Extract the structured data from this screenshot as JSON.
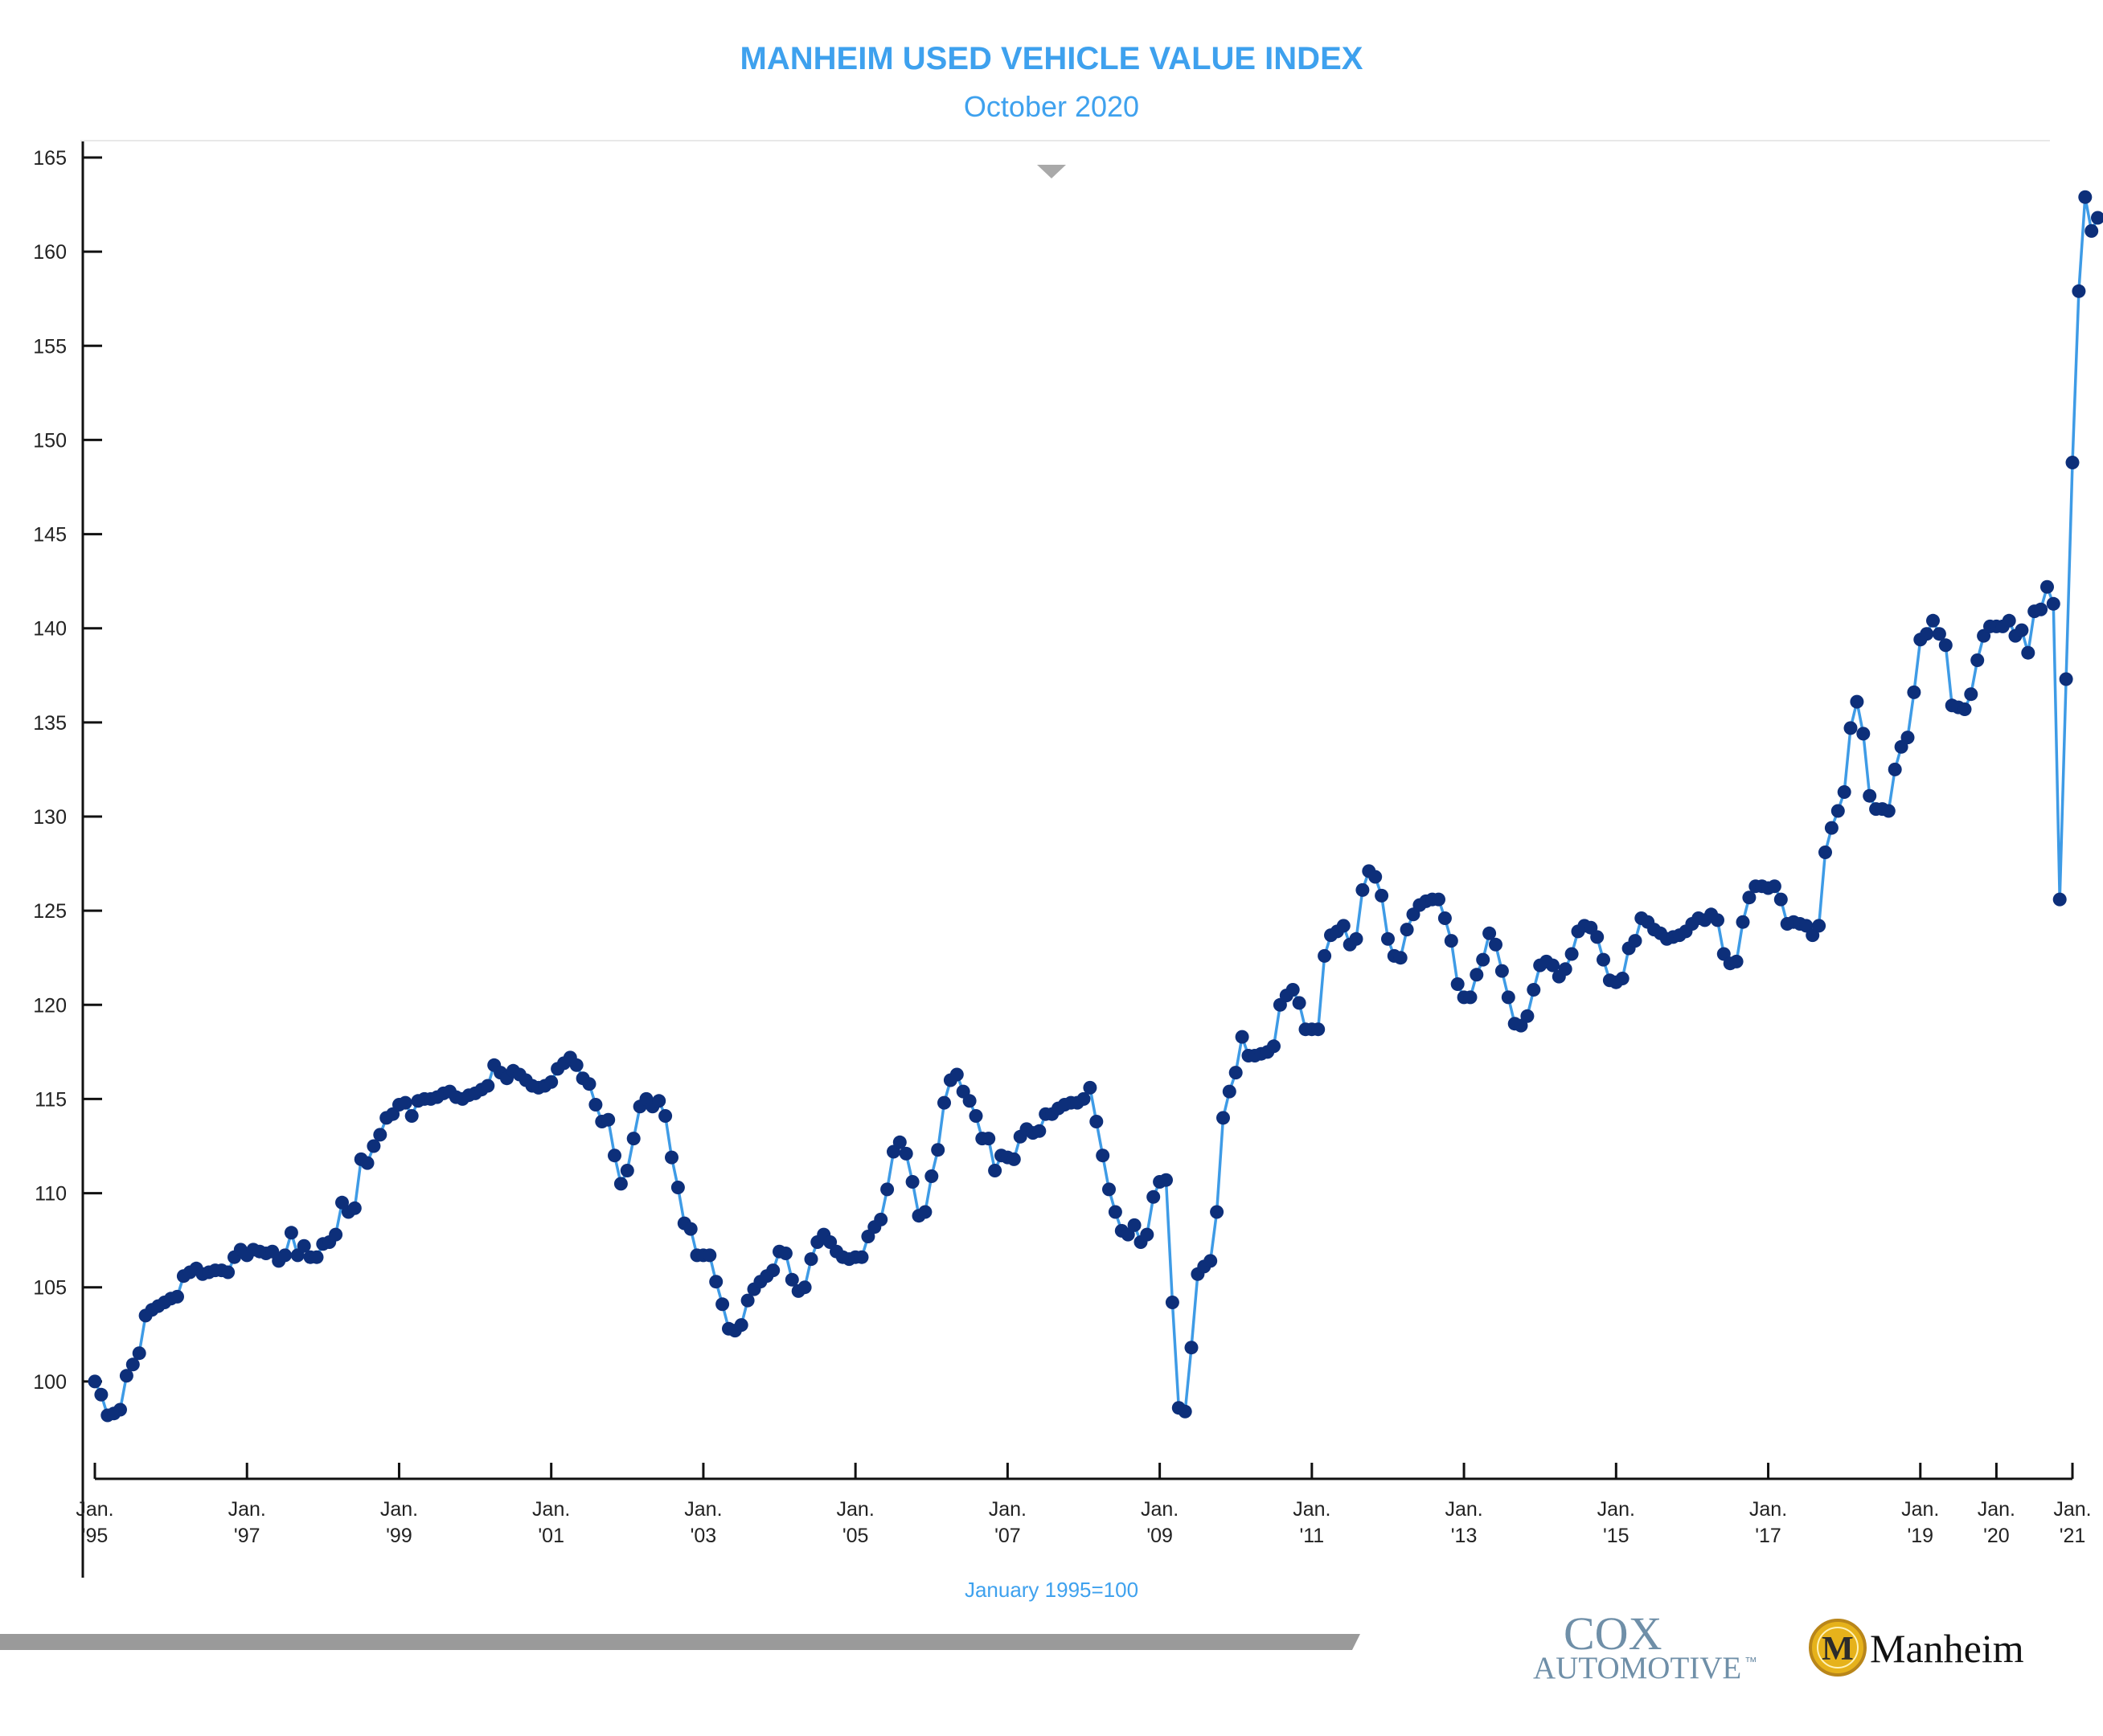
{
  "colors": {
    "title": "#3ea1ee",
    "line": "#3e9be6",
    "marker": "#0d2f7a",
    "axis": "#111111",
    "footer_bar": "#9a9a9a",
    "cox_logo": "#6f8fa8",
    "manheim_medallion": "#e6b21b"
  },
  "chart_data": {
    "type": "line",
    "title": "MANHEIM USED VEHICLE VALUE INDEX",
    "subtitle": "October 2020",
    "note": "January 1995=100",
    "ylim": [
      95,
      165
    ],
    "y_ticks": [
      100,
      105,
      110,
      115,
      120,
      125,
      130,
      135,
      140,
      145,
      150,
      155,
      160,
      165
    ],
    "x_range": [
      "1995-01",
      "2021-01"
    ],
    "x_ticks": [
      {
        "line1": "Jan.",
        "line2": "'95"
      },
      {
        "line1": "Jan.",
        "line2": "'97"
      },
      {
        "line1": "Jan.",
        "line2": "'99"
      },
      {
        "line1": "Jan.",
        "line2": "'01"
      },
      {
        "line1": "Jan.",
        "line2": "'03"
      },
      {
        "line1": "Jan.",
        "line2": "'05"
      },
      {
        "line1": "Jan.",
        "line2": "'07"
      },
      {
        "line1": "Jan.",
        "line2": "'09"
      },
      {
        "line1": "Jan.",
        "line2": "'11"
      },
      {
        "line1": "Jan.",
        "line2": "'13"
      },
      {
        "line1": "Jan.",
        "line2": "'15"
      },
      {
        "line1": "Jan.",
        "line2": "'17"
      },
      {
        "line1": "Jan.",
        "line2": "'19"
      },
      {
        "line1": "Jan.",
        "line2": "'20"
      },
      {
        "line1": "Jan.",
        "line2": "'21"
      }
    ],
    "x_tick_dates": [
      "1995-01",
      "1997-01",
      "1999-01",
      "2001-01",
      "2003-01",
      "2005-01",
      "2007-01",
      "2009-01",
      "2011-01",
      "2013-01",
      "2015-01",
      "2017-01",
      "2019-01",
      "2020-01",
      "2021-01"
    ],
    "series": [
      {
        "segments": [
          {
            "start": "1995-01",
            "values": [
              100.0,
              99.3,
              98.2,
              98.3,
              98.5,
              100.3,
              100.9,
              101.5,
              103.5,
              103.8,
              104.0,
              104.2,
              104.4,
              104.5,
              105.6,
              105.8,
              106.0,
              105.7,
              105.8,
              105.9,
              105.9,
              105.8,
              106.6,
              107.0,
              106.7,
              107.0,
              106.9,
              106.8,
              106.9,
              106.4,
              106.7,
              107.9,
              106.7,
              107.2,
              106.6,
              106.6,
              107.3,
              107.4,
              107.8,
              109.5,
              109.0,
              109.2,
              111.8,
              111.6,
              112.5,
              113.1,
              114.0,
              114.2,
              114.7,
              114.8,
              114.1,
              114.9,
              115.0,
              115.0,
              115.1,
              115.3,
              115.4,
              115.1,
              115.0,
              115.2,
              115.3,
              115.5,
              115.7,
              116.8,
              116.4,
              116.1,
              116.5,
              116.3,
              116.0,
              115.7,
              115.6,
              115.7,
              115.9,
              116.6,
              116.9,
              117.2,
              116.8,
              116.1,
              115.8,
              114.7,
              113.8,
              113.9,
              112.0,
              110.5,
              111.2,
              112.9,
              114.6,
              115.0,
              114.6,
              114.9,
              114.1,
              111.9,
              110.3,
              108.4,
              108.1,
              106.7,
              106.7,
              106.7,
              105.3,
              104.1,
              102.8,
              102.7,
              103.0,
              104.3,
              104.9,
              105.3,
              105.6,
              105.9,
              106.9,
              106.8,
              105.4,
              104.8,
              105.0,
              106.5,
              107.4,
              107.8,
              107.4,
              106.9,
              106.6,
              106.5,
              106.6,
              106.6,
              107.7,
              108.2,
              108.6,
              110.2,
              112.2,
              112.7,
              112.1,
              110.6,
              108.8,
              109.0,
              110.9,
              112.3,
              114.8,
              116.0,
              116.3,
              115.4,
              114.9,
              114.1,
              112.9,
              112.9,
              111.2,
              112.0,
              111.9,
              111.8,
              113.0,
              113.4,
              113.2,
              113.3,
              114.2,
              114.2,
              114.5,
              114.7,
              114.8,
              114.8,
              115.0,
              115.6,
              113.8,
              112.0,
              110.2,
              109.0,
              108.0,
              107.8,
              108.3,
              107.4,
              107.8,
              109.8,
              110.6,
              110.7,
              104.2,
              98.6,
              98.4,
              101.8,
              105.7,
              106.1,
              106.4,
              109.0,
              114.0,
              115.4,
              116.4,
              118.3,
              117.3,
              117.3,
              117.4,
              117.5,
              117.8,
              120.0,
              120.5,
              120.8,
              120.1,
              118.7,
              118.7,
              118.7,
              122.6,
              123.7,
              123.9,
              124.2,
              123.2,
              123.5,
              126.1,
              127.1,
              126.8,
              125.8,
              123.5,
              122.6,
              122.5,
              124.0,
              124.8,
              125.3,
              125.5,
              125.6,
              125.6,
              124.6,
              123.4,
              121.1,
              120.4,
              120.4,
              121.6,
              122.4,
              123.8,
              123.2,
              121.8,
              120.4,
              119.0,
              118.9,
              119.4,
              120.8,
              122.1,
              122.3,
              122.1,
              121.5,
              121.9,
              122.7,
              123.9,
              124.2,
              124.1,
              123.6,
              122.4,
              121.3,
              121.2,
              121.4,
              123.0,
              123.4,
              124.6,
              124.4,
              124.0,
              123.8,
              123.5,
              123.6,
              123.7,
              123.9,
              124.3,
              124.6,
              124.5,
              124.8,
              124.5,
              122.7,
              122.2,
              122.3,
              124.4,
              125.7,
              126.3,
              126.3,
              126.2,
              126.3,
              125.6,
              124.3,
              124.4,
              124.3,
              124.2,
              123.7,
              124.2,
              128.1,
              129.4,
              130.3,
              131.3,
              134.7,
              136.1,
              134.4,
              131.1,
              130.4,
              130.4,
              130.3,
              132.5,
              133.7,
              134.2,
              136.6,
              139.4,
              139.7,
              140.4,
              139.7,
              139.1,
              135.9,
              135.8,
              135.7,
              136.5,
              138.3,
              139.6,
              140.1,
              140.1,
              140.1,
              140.4,
              139.6,
              139.9,
              138.7,
              140.9,
              141.0,
              142.2,
              141.3,
              125.6,
              137.3,
              148.8,
              157.9,
              162.9,
              161.1,
              161.8
            ]
          }
        ]
      }
    ]
  },
  "logos": {
    "cox_top": "COX",
    "cox_bottom": "AUTOMOTIVE",
    "cox_tm": "™",
    "manheim_medallion_letter": "M",
    "manheim_wordmark": "Manheim"
  }
}
